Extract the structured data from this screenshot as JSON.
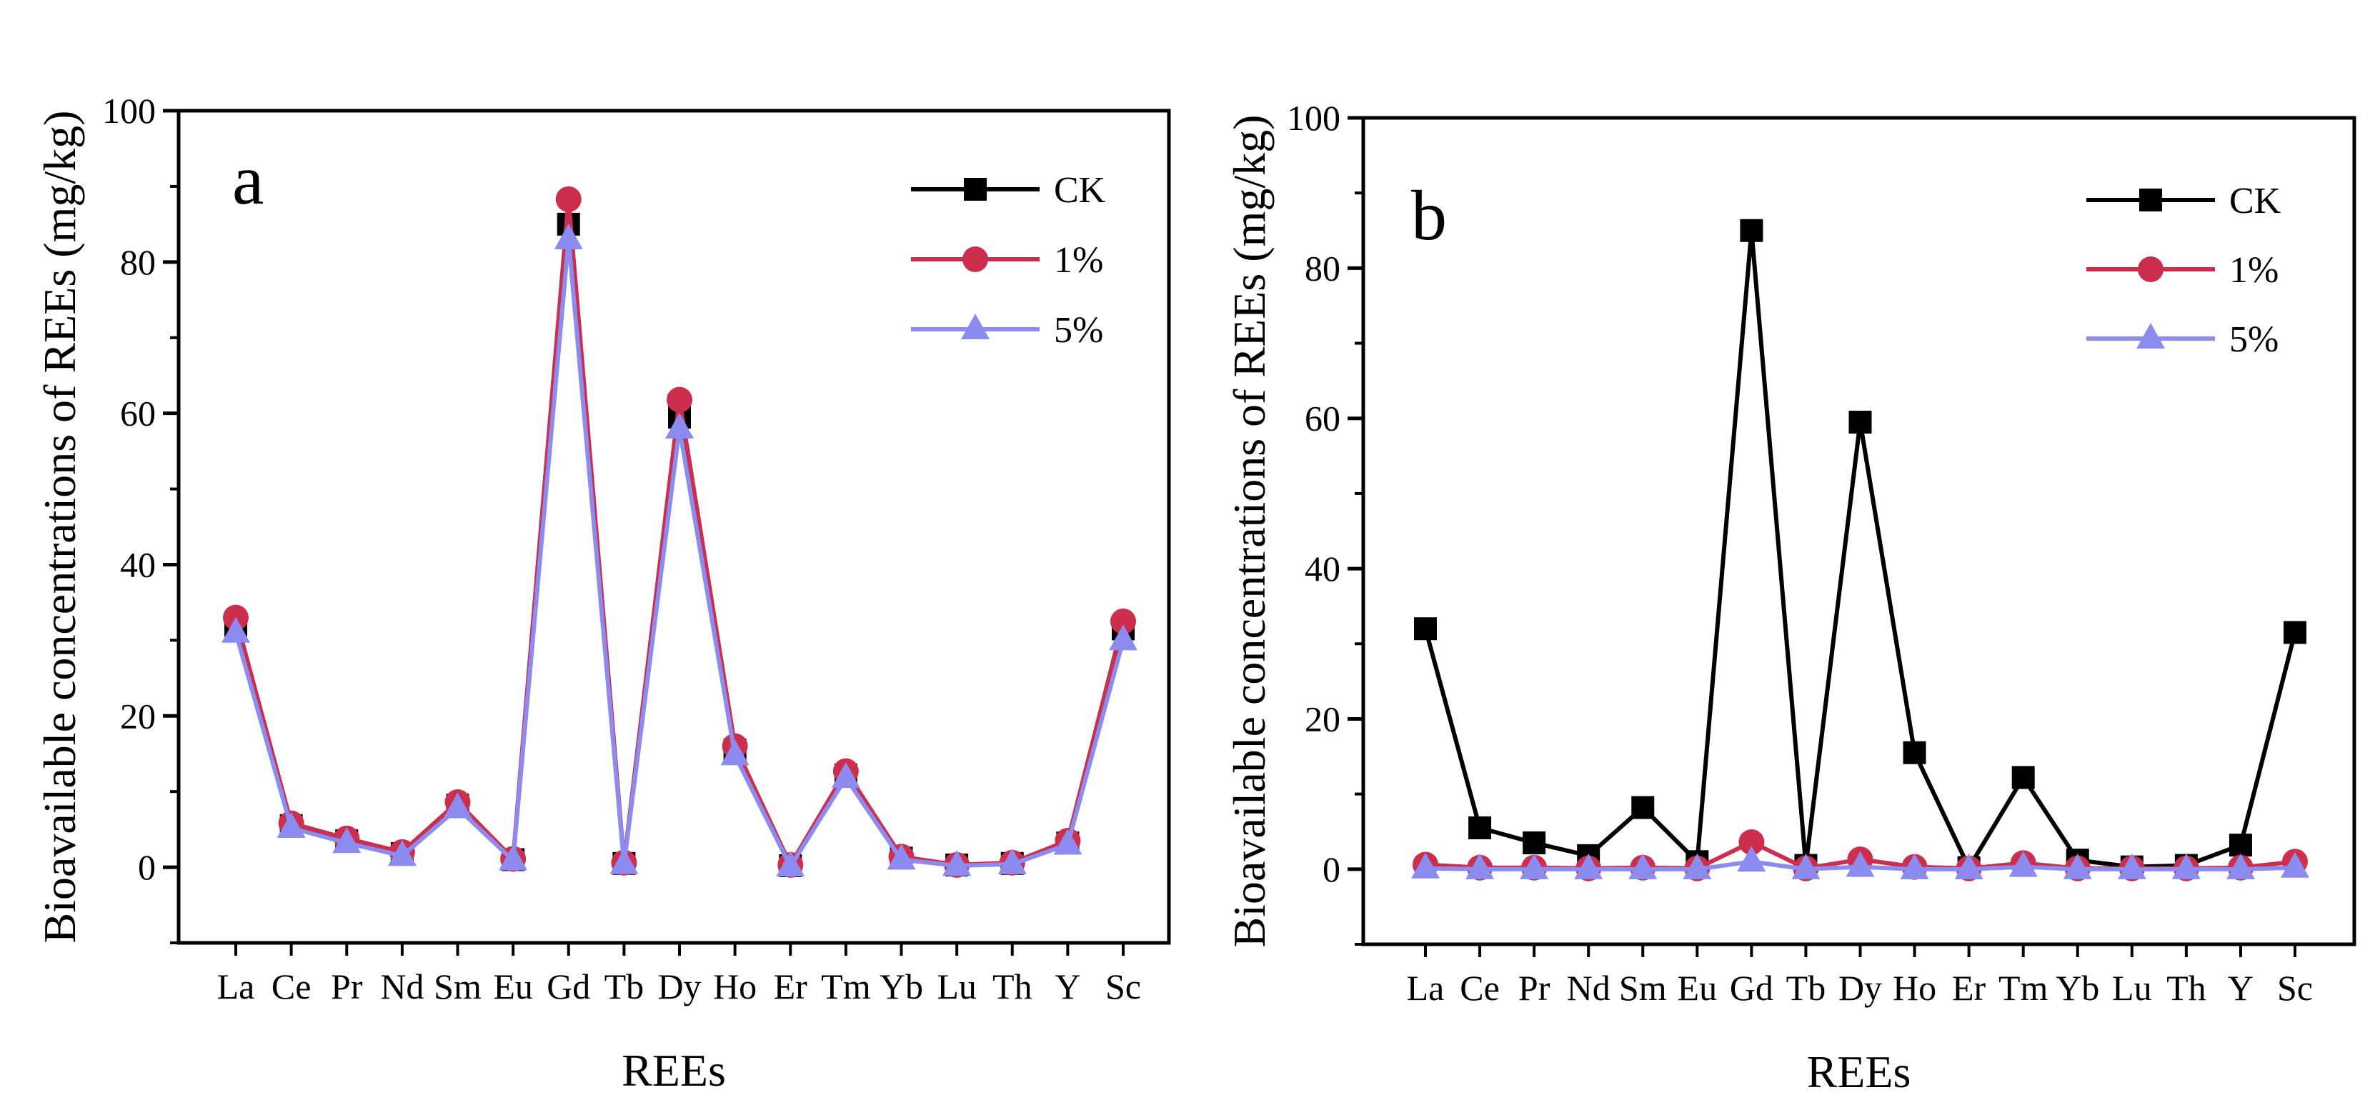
{
  "chart_data": [
    {
      "type": "line",
      "panel_label": "a",
      "xlabel": "REEs",
      "ylabel": "Bioavailable concentrations of REEs (mg/kg)",
      "categories": [
        "La",
        "Ce",
        "Pr",
        "Nd",
        "Sm",
        "Eu",
        "Gd",
        "Tb",
        "Dy",
        "Ho",
        "Er",
        "Tm",
        "Yb",
        "Lu",
        "Th",
        "Y",
        "Sc"
      ],
      "ylim": [
        -10,
        100
      ],
      "yticks": [
        "0",
        "20",
        "40",
        "60",
        "80",
        "100"
      ],
      "grid": false,
      "legend_position": "top-right",
      "series": [
        {
          "name": "CK",
          "color": "#000000",
          "marker": "square",
          "values": [
            32,
            5.5,
            3.5,
            1.8,
            8.2,
            1.0,
            85,
            0.5,
            59.5,
            15.5,
            0.2,
            12.2,
            1.2,
            0.3,
            0.5,
            3.2,
            31.5
          ]
        },
        {
          "name": "1%",
          "color": "#cc2f4e",
          "marker": "circle",
          "values": [
            33,
            5.8,
            3.8,
            2.0,
            8.6,
            1.1,
            88.3,
            0.6,
            61.8,
            16.0,
            0.3,
            12.7,
            1.4,
            0.3,
            0.6,
            3.5,
            32.5
          ]
        },
        {
          "name": "5%",
          "color": "#8c8cf0",
          "marker": "triangle",
          "values": [
            31,
            5.2,
            3.2,
            1.5,
            7.8,
            0.9,
            83,
            0.4,
            58,
            14.8,
            0.1,
            11.8,
            1.0,
            0.2,
            0.4,
            3.0,
            30
          ]
        }
      ]
    },
    {
      "type": "line",
      "panel_label": "b",
      "xlabel": "REEs",
      "ylabel": "Bioavailable concentrations of REEs (mg/kg)",
      "categories": [
        "La",
        "Ce",
        "Pr",
        "Nd",
        "Sm",
        "Eu",
        "Gd",
        "Tb",
        "Dy",
        "Ho",
        "Er",
        "Tm",
        "Yb",
        "Lu",
        "Th",
        "Y",
        "Sc"
      ],
      "ylim": [
        -10,
        100
      ],
      "yticks": [
        "0",
        "20",
        "40",
        "60",
        "80",
        "100"
      ],
      "grid": false,
      "legend_position": "top-right",
      "series": [
        {
          "name": "CK",
          "color": "#000000",
          "marker": "square",
          "values": [
            32,
            5.5,
            3.5,
            1.8,
            8.2,
            1.0,
            85,
            0.5,
            59.5,
            15.5,
            0.2,
            12.2,
            1.2,
            0.3,
            0.5,
            3.2,
            31.5
          ]
        },
        {
          "name": "1%",
          "color": "#cc2f4e",
          "marker": "circle",
          "values": [
            0.6,
            0.2,
            0.2,
            0.1,
            0.2,
            0.1,
            3.6,
            0.1,
            1.3,
            0.3,
            0.1,
            0.8,
            0.1,
            0.1,
            0.1,
            0.2,
            1.0
          ]
        },
        {
          "name": "5%",
          "color": "#8c8cf0",
          "marker": "triangle",
          "values": [
            0.1,
            0.0,
            0.0,
            0.0,
            0.0,
            0.0,
            1.0,
            0.0,
            0.3,
            0.0,
            0.0,
            0.3,
            0.0,
            0.0,
            0.0,
            0.0,
            0.2
          ]
        }
      ]
    }
  ]
}
